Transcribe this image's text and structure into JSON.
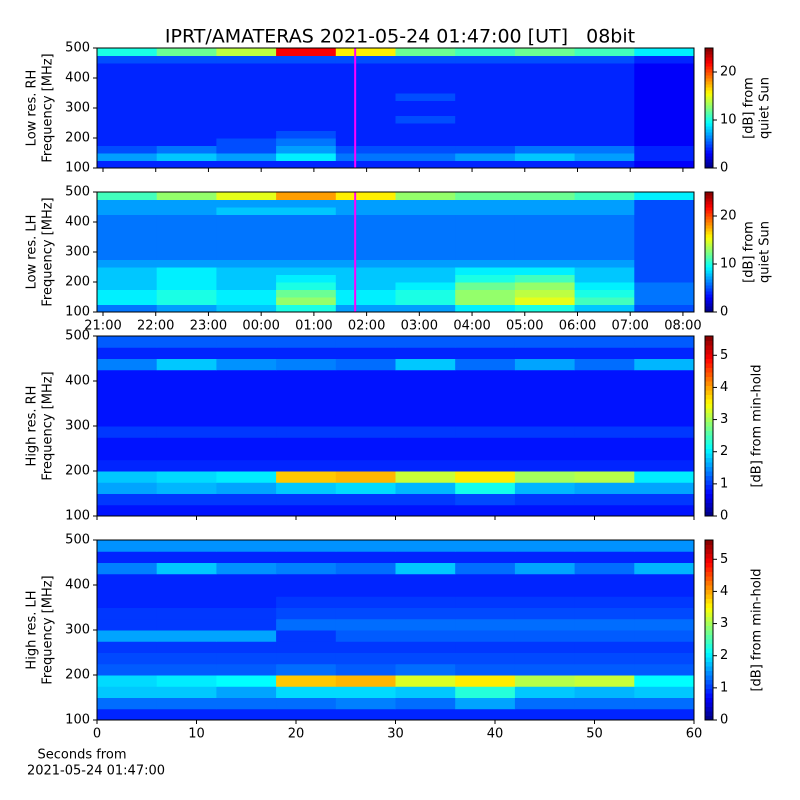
{
  "title": "IPRT/AMATERAS 2021-05-24 01:47:00 [UT]   08bit",
  "chart_data": [
    {
      "type": "heatmap",
      "ylabel": [
        "Low res. RH",
        "Frequency [MHz]"
      ],
      "ylim": [
        100,
        500
      ],
      "yticks": [
        100,
        200,
        300,
        400,
        500
      ],
      "xlim": [
        20.886,
        32.21
      ],
      "xticks": [
        21,
        22,
        23,
        24,
        25,
        26,
        27,
        28,
        29,
        30,
        31,
        32
      ],
      "xticklabels": false,
      "marker_x": 25.783,
      "marker_color": "#ff00ff",
      "clim": [
        0,
        25
      ],
      "cticks": [
        0,
        10,
        20
      ],
      "colorbar_label": [
        "[dB] from",
        "quiet Sun"
      ],
      "z": [
        [
          4,
          4,
          4,
          4,
          4,
          4,
          4,
          4,
          4,
          3
        ],
        [
          7,
          8,
          7,
          9,
          6,
          6,
          7,
          8,
          7,
          4
        ],
        [
          5,
          6,
          5,
          7,
          5,
          5,
          5,
          6,
          6,
          4
        ],
        [
          4,
          4,
          5,
          6,
          4,
          4,
          4,
          4,
          4,
          3
        ],
        [
          4,
          4,
          4,
          5,
          4,
          4,
          4,
          4,
          4,
          3
        ],
        [
          4,
          4,
          4,
          4,
          4,
          4,
          4,
          4,
          4,
          3
        ],
        [
          4,
          4,
          4,
          4,
          4,
          5,
          4,
          4,
          4,
          3
        ],
        [
          4,
          4,
          4,
          4,
          4,
          4,
          4,
          4,
          4,
          3
        ],
        [
          4,
          4,
          4,
          4,
          4,
          4,
          4,
          4,
          4,
          3
        ],
        [
          4,
          4,
          4,
          4,
          4,
          5,
          4,
          4,
          4,
          3
        ],
        [
          4,
          4,
          4,
          4,
          4,
          4,
          4,
          4,
          4,
          3
        ],
        [
          4,
          4,
          4,
          4,
          4,
          4,
          4,
          4,
          4,
          3
        ],
        [
          4,
          4,
          4,
          4,
          4,
          4,
          4,
          4,
          4,
          3
        ],
        [
          4,
          4,
          4,
          4,
          4,
          4,
          4,
          4,
          4,
          3
        ],
        [
          5,
          5,
          5,
          5,
          5,
          5,
          5,
          5,
          5,
          4
        ],
        [
          10,
          12,
          14,
          22,
          16,
          12,
          11,
          12,
          11,
          9
        ]
      ]
    },
    {
      "type": "heatmap",
      "ylabel": [
        "Low res. LH",
        "Frequency [MHz]"
      ],
      "ylim": [
        100,
        500
      ],
      "yticks": [
        100,
        200,
        300,
        400,
        500
      ],
      "xlim": [
        20.886,
        32.21
      ],
      "xticks": [
        {
          "value": 21,
          "label": "21:00"
        },
        {
          "value": 22,
          "label": "22:00"
        },
        {
          "value": 23,
          "label": "23:00"
        },
        {
          "value": 24,
          "label": "00:00"
        },
        {
          "value": 25,
          "label": "01:00"
        },
        {
          "value": 26,
          "label": "02:00"
        },
        {
          "value": 27,
          "label": "03:00"
        },
        {
          "value": 28,
          "label": "04:00"
        },
        {
          "value": 29,
          "label": "05:00"
        },
        {
          "value": 30,
          "label": "06:00"
        },
        {
          "value": 31,
          "label": "07:00"
        },
        {
          "value": 32,
          "label": "08:00"
        }
      ],
      "xticklabels": true,
      "marker_x": 25.783,
      "marker_color": "#ff00ff",
      "clim": [
        0,
        25
      ],
      "cticks": [
        0,
        10,
        20
      ],
      "colorbar_label": [
        "[dB] from",
        "quiet Sun"
      ],
      "z": [
        [
          6,
          7,
          8,
          10,
          7,
          7,
          9,
          10,
          8,
          5
        ],
        [
          9,
          10,
          9,
          13,
          9,
          10,
          13,
          15,
          11,
          6
        ],
        [
          9,
          10,
          9,
          12,
          9,
          10,
          13,
          14,
          10,
          6
        ],
        [
          8,
          9,
          8,
          10,
          8,
          9,
          12,
          13,
          9,
          6
        ],
        [
          8,
          9,
          8,
          9,
          8,
          8,
          10,
          11,
          8,
          5
        ],
        [
          8,
          9,
          8,
          8,
          8,
          8,
          9,
          9,
          8,
          5
        ],
        [
          7,
          7,
          7,
          7,
          7,
          7,
          7,
          7,
          7,
          5
        ],
        [
          6,
          6,
          6,
          6,
          6,
          6,
          6,
          6,
          6,
          5
        ],
        [
          6,
          6,
          6,
          6,
          6,
          6,
          6,
          6,
          6,
          5
        ],
        [
          6,
          6,
          6,
          6,
          6,
          6,
          6,
          6,
          6,
          5
        ],
        [
          6,
          6,
          6,
          6,
          6,
          6,
          6,
          6,
          6,
          5
        ],
        [
          6,
          6,
          6,
          6,
          6,
          6,
          6,
          6,
          6,
          5
        ],
        [
          6,
          6,
          6,
          6,
          6,
          6,
          6,
          6,
          6,
          5
        ],
        [
          7,
          7,
          8,
          8,
          7,
          7,
          7,
          7,
          7,
          5
        ],
        [
          7,
          7,
          7,
          7,
          7,
          7,
          7,
          7,
          7,
          5
        ],
        [
          11,
          13,
          15,
          18,
          16,
          13,
          12,
          12,
          11,
          9
        ]
      ]
    },
    {
      "type": "heatmap",
      "ylabel": [
        "High res. RH",
        "Frequency [MHz]"
      ],
      "ylim": [
        100,
        500
      ],
      "yticks": [
        100,
        200,
        300,
        400,
        500
      ],
      "xlim": [
        0,
        60
      ],
      "xticks": [
        0,
        10,
        20,
        30,
        40,
        50,
        60
      ],
      "xticklabels": false,
      "clim": [
        0,
        5.6
      ],
      "cticks": [
        0,
        1,
        2,
        3,
        4,
        5
      ],
      "colorbar_label": [
        "[dB] from min-hold"
      ],
      "z": [
        [
          0.8,
          0.8,
          0.8,
          0.8,
          0.8,
          0.8,
          0.8,
          0.8,
          0.8,
          0.8
        ],
        [
          1.0,
          1.0,
          1.0,
          1.0,
          1.0,
          1.0,
          1.1,
          1.0,
          1.0,
          1.0
        ],
        [
          1.6,
          1.7,
          1.6,
          1.8,
          1.9,
          1.7,
          2.2,
          1.7,
          1.6,
          1.6
        ],
        [
          1.8,
          1.9,
          2.0,
          3.8,
          3.9,
          3.2,
          3.6,
          3.0,
          3.1,
          2.0
        ],
        [
          0.9,
          0.9,
          0.9,
          0.9,
          0.9,
          0.9,
          0.9,
          0.9,
          0.9,
          0.9
        ],
        [
          0.8,
          0.8,
          0.8,
          0.8,
          0.8,
          0.8,
          0.8,
          0.8,
          0.8,
          0.8
        ],
        [
          0.8,
          0.8,
          0.8,
          0.8,
          0.8,
          0.8,
          0.8,
          0.8,
          0.8,
          0.8
        ],
        [
          1.0,
          1.0,
          1.0,
          1.0,
          1.0,
          1.0,
          1.0,
          1.0,
          1.0,
          1.0
        ],
        [
          0.8,
          0.8,
          0.8,
          0.8,
          0.8,
          0.8,
          0.8,
          0.8,
          0.8,
          0.8
        ],
        [
          0.8,
          0.8,
          0.8,
          0.8,
          0.8,
          0.8,
          0.8,
          0.8,
          0.8,
          0.8
        ],
        [
          0.8,
          0.8,
          0.8,
          0.8,
          0.8,
          0.8,
          0.8,
          0.8,
          0.8,
          0.8
        ],
        [
          0.8,
          0.8,
          0.8,
          0.8,
          0.8,
          0.8,
          0.8,
          0.8,
          0.8,
          0.8
        ],
        [
          0.8,
          0.8,
          0.8,
          0.8,
          0.8,
          0.8,
          0.8,
          0.8,
          0.8,
          0.8
        ],
        [
          1.4,
          1.8,
          1.5,
          1.4,
          1.3,
          1.8,
          1.3,
          1.6,
          1.3,
          1.7
        ],
        [
          0.9,
          0.9,
          0.9,
          0.9,
          0.9,
          0.9,
          0.9,
          0.9,
          0.9,
          0.9
        ],
        [
          1.2,
          1.2,
          1.2,
          1.2,
          1.2,
          1.2,
          1.2,
          1.2,
          1.2,
          1.2
        ]
      ]
    },
    {
      "type": "heatmap",
      "ylabel": [
        "High res. LH",
        "Frequency [MHz]"
      ],
      "ylim": [
        100,
        500
      ],
      "yticks": [
        100,
        200,
        300,
        400,
        500
      ],
      "xlim": [
        0,
        60
      ],
      "xticks": [
        0,
        10,
        20,
        30,
        40,
        50,
        60
      ],
      "xticklabels": true,
      "xlabel": [
        "Seconds from",
        "2021-05-24 01:47:00"
      ],
      "clim": [
        0,
        5.6
      ],
      "cticks": [
        0,
        1,
        2,
        3,
        4,
        5
      ],
      "colorbar_label": [
        "[dB] from min-hold"
      ],
      "z": [
        [
          0.9,
          0.9,
          0.9,
          0.9,
          0.9,
          0.9,
          0.9,
          0.9,
          0.9,
          0.9
        ],
        [
          1.3,
          1.3,
          1.3,
          1.3,
          1.4,
          1.3,
          1.6,
          1.3,
          1.3,
          1.3
        ],
        [
          1.8,
          1.8,
          1.6,
          1.9,
          1.9,
          1.8,
          2.3,
          1.8,
          1.7,
          1.8
        ],
        [
          1.9,
          2.0,
          2.1,
          3.8,
          3.9,
          3.3,
          3.6,
          3.1,
          3.2,
          2.1
        ],
        [
          1.2,
          1.2,
          1.2,
          1.3,
          1.2,
          1.3,
          1.2,
          1.2,
          1.2,
          1.2
        ],
        [
          1.1,
          1.1,
          1.1,
          1.1,
          1.1,
          1.1,
          1.1,
          1.1,
          1.1,
          1.1
        ],
        [
          1.0,
          1.0,
          1.0,
          1.0,
          1.0,
          1.0,
          1.0,
          1.0,
          1.0,
          1.0
        ],
        [
          1.6,
          1.6,
          1.6,
          1.0,
          1.2,
          1.2,
          1.2,
          1.2,
          1.2,
          1.2
        ],
        [
          1.0,
          1.0,
          1.0,
          1.3,
          1.3,
          1.3,
          1.3,
          1.3,
          1.3,
          1.3
        ],
        [
          1.0,
          1.0,
          1.0,
          1.1,
          1.1,
          1.1,
          1.1,
          1.1,
          1.1,
          1.1
        ],
        [
          0.9,
          0.9,
          0.9,
          1.0,
          1.0,
          1.0,
          1.0,
          1.0,
          1.0,
          1.0
        ],
        [
          0.9,
          0.9,
          0.9,
          0.9,
          0.9,
          0.9,
          0.9,
          0.9,
          0.9,
          0.9
        ],
        [
          0.9,
          0.9,
          0.9,
          0.9,
          0.9,
          0.9,
          0.9,
          0.9,
          0.9,
          0.9
        ],
        [
          1.4,
          1.8,
          1.5,
          1.4,
          1.3,
          1.8,
          1.3,
          1.6,
          1.3,
          1.7
        ],
        [
          0.9,
          0.9,
          0.9,
          0.9,
          0.9,
          0.9,
          0.9,
          0.9,
          0.9,
          0.9
        ],
        [
          1.5,
          1.5,
          1.5,
          1.5,
          1.5,
          1.5,
          1.5,
          1.5,
          1.5,
          1.5
        ]
      ]
    }
  ]
}
